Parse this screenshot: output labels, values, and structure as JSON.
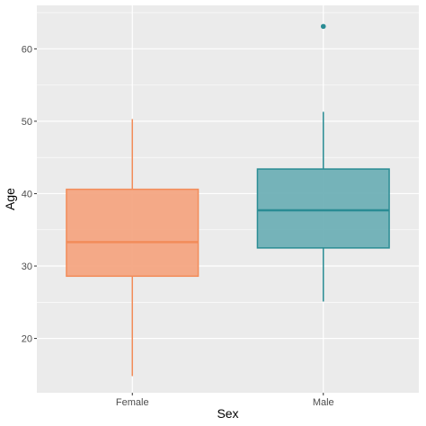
{
  "chart_data": {
    "type": "boxplot",
    "xlabel": "Sex",
    "ylabel": "Age",
    "ylim": [
      12.5,
      66
    ],
    "y_ticks": [
      20,
      30,
      40,
      50,
      60
    ],
    "y_tick_labels": [
      "20",
      "30",
      "40",
      "50",
      "60"
    ],
    "y_minor_ticks": [
      25,
      35,
      45,
      55,
      65
    ],
    "grid": true,
    "legend": "none",
    "categories": [
      "Female",
      "Male"
    ],
    "boxes": [
      {
        "category": "Female",
        "whisker_low": 14.8,
        "q1": 28.6,
        "median": 33.3,
        "q3": 40.6,
        "whisker_high": 50.3,
        "outliers": [],
        "color": "#F28C5A",
        "fill": "#F4A582"
      },
      {
        "category": "Male",
        "whisker_low": 25.1,
        "q1": 32.5,
        "median": 37.7,
        "q3": 43.4,
        "whisker_high": 51.3,
        "outliers": [
          63.1
        ],
        "color": "#2A8C94",
        "fill": "#6FB0B6"
      }
    ],
    "colors": {
      "panel": "#EBEBEB",
      "grid": "#FFFFFF",
      "text": "#4D4D4D"
    }
  }
}
